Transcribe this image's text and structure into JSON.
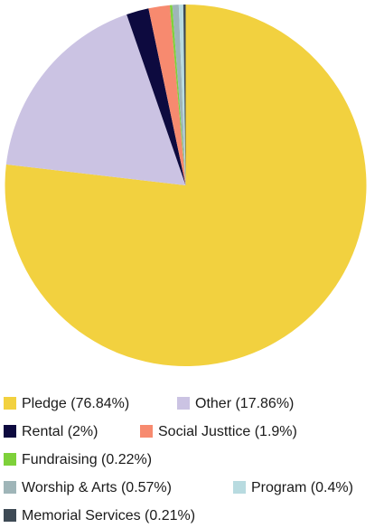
{
  "chart_data": {
    "type": "pie",
    "categories": [
      "Pledge (76.84%)",
      "Other (17.86%)",
      "Rental (2%)",
      "Social Justtice (1.9%)",
      "Fundraising (0.22%)",
      "Worship & Arts (0.57%)",
      "Program (0.4%)",
      "Memorial Services (0.21%)"
    ],
    "values": [
      76.84,
      17.86,
      2,
      1.9,
      0.22,
      0.57,
      0.4,
      0.21
    ],
    "colors": [
      "#f2d13f",
      "#cbc3e3",
      "#0d0a3f",
      "#f78a6f",
      "#7ed13a",
      "#9fb5b8",
      "#b8dbe0",
      "#3e4a55"
    ],
    "legend": "bottom"
  }
}
